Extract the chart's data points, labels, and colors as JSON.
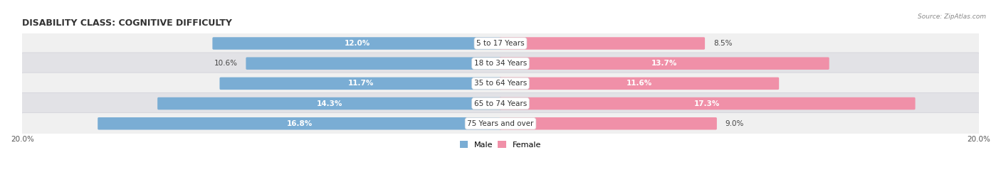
{
  "title": "DISABILITY CLASS: COGNITIVE DIFFICULTY",
  "source_text": "Source: ZipAtlas.com",
  "categories": [
    "5 to 17 Years",
    "18 to 34 Years",
    "35 to 64 Years",
    "65 to 74 Years",
    "75 Years and over"
  ],
  "male_values": [
    12.0,
    10.6,
    11.7,
    14.3,
    16.8
  ],
  "female_values": [
    8.5,
    13.7,
    11.6,
    17.3,
    9.0
  ],
  "max_val": 20.0,
  "male_color": "#7aadd4",
  "female_color": "#f090a8",
  "row_bg_light": "#f0f0f0",
  "row_bg_dark": "#e2e2e6",
  "row_border_color": "#d0d0d8",
  "title_fontsize": 9,
  "bar_label_fontsize": 7.5,
  "axis_label_fontsize": 7.5,
  "category_fontsize": 7.5,
  "legend_fontsize": 8
}
